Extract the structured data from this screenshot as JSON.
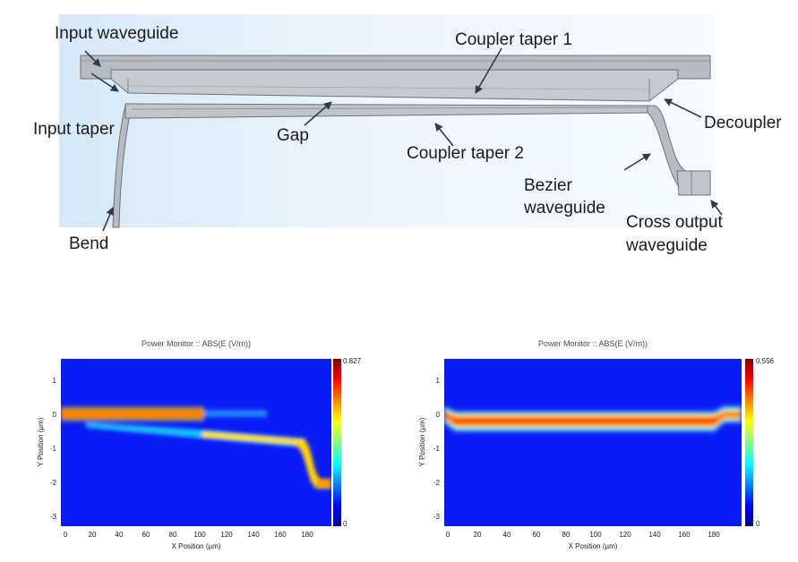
{
  "diagram": {
    "labels": {
      "input_waveguide": "Input waveguide",
      "coupler_taper_1": "Coupler taper 1",
      "input_taper": "Input taper",
      "gap": "Gap",
      "decoupler": "Decoupler",
      "coupler_taper_2": "Coupler taper 2",
      "bezier_line1": "Bezier",
      "bezier_line2": "waveguide",
      "bend": "Bend",
      "cross_output_line1": "Cross output",
      "cross_output_line2": "waveguide"
    },
    "colors": {
      "background": "#e6f2fb",
      "waveguide_fill": "#b8bcc2",
      "waveguide_edge": "#6f7378",
      "arrow": "#2b3a4d"
    }
  },
  "chart_data": [
    {
      "type": "heatmap",
      "title": "Power Monitor :: ABS(E (V/m))",
      "xlabel": "X Position (µm)",
      "ylabel": "Y Position (µm)",
      "xlim": [
        -3,
        196
      ],
      "ylim": [
        -3.3,
        1.6
      ],
      "xticks": [
        "0",
        "20",
        "40",
        "60",
        "80",
        "100",
        "120",
        "140",
        "160",
        "180"
      ],
      "yticks": [
        "1",
        "0",
        "-1",
        "-2",
        "-3"
      ],
      "colorbar": {
        "min_label": "0",
        "max_label": "0.827",
        "min": 0,
        "max": 0.827
      },
      "field": "mode couples from the upper waveguide (y≈0) into the lower tapered waveguide (y≈-0.6 to -1.0) and exits at y≈-2 after x≈180"
    },
    {
      "type": "heatmap",
      "title": "Power Monitor :: ABS(E (V/m))",
      "xlabel": "X Position (µm)",
      "ylabel": "Y Position (µm)",
      "xlim": [
        -3,
        196
      ],
      "ylim": [
        -3.3,
        1.6
      ],
      "xticks": [
        "0",
        "20",
        "40",
        "60",
        "80",
        "100",
        "120",
        "140",
        "160",
        "180"
      ],
      "yticks": [
        "1",
        "0",
        "-1",
        "-2",
        "-3"
      ],
      "colorbar": {
        "min_label": "0",
        "max_label": "0.556",
        "min": 0,
        "max": 0.556
      },
      "field": "mode stays confined in the straight waveguide near y≈0 across the full length"
    }
  ]
}
